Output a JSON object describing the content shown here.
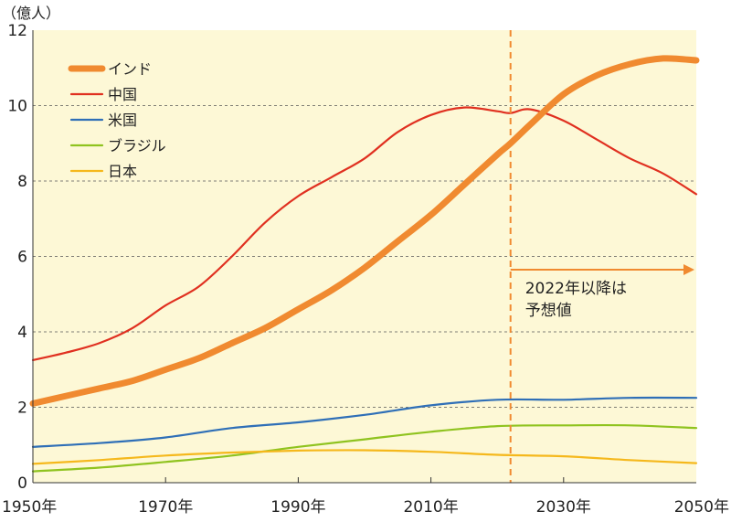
{
  "chart_data": {
    "type": "line",
    "unit_label": "（億人）",
    "x_ticks": [
      "1950年",
      "1970年",
      "1990年",
      "2010年",
      "2030年",
      "2050年"
    ],
    "x_tick_values": [
      1950,
      1970,
      1990,
      2010,
      2030,
      2050
    ],
    "y_ticks": [
      "0",
      "2",
      "4",
      "6",
      "8",
      "10",
      "12"
    ],
    "y_tick_values": [
      0,
      2,
      4,
      6,
      8,
      10,
      12
    ],
    "xlim": [
      1950,
      2050
    ],
    "ylim": [
      0,
      12
    ],
    "grid": "horizontal dashed",
    "legend_position": "top-left",
    "projection_start": 2022,
    "projection_note": [
      "2022年以降は",
      "予想値"
    ],
    "series": [
      {
        "name": "インド",
        "color": "#f08a30",
        "width": 7,
        "points": [
          [
            1950,
            2.1
          ],
          [
            1955,
            2.3
          ],
          [
            1960,
            2.5
          ],
          [
            1965,
            2.7
          ],
          [
            1970,
            3.0
          ],
          [
            1975,
            3.3
          ],
          [
            1980,
            3.7
          ],
          [
            1985,
            4.1
          ],
          [
            1990,
            4.6
          ],
          [
            1995,
            5.1
          ],
          [
            2000,
            5.7
          ],
          [
            2005,
            6.4
          ],
          [
            2010,
            7.1
          ],
          [
            2015,
            7.9
          ],
          [
            2020,
            8.7
          ],
          [
            2022,
            9.0
          ],
          [
            2025,
            9.5
          ],
          [
            2030,
            10.3
          ],
          [
            2035,
            10.8
          ],
          [
            2040,
            11.1
          ],
          [
            2045,
            11.25
          ],
          [
            2050,
            11.2
          ]
        ]
      },
      {
        "name": "中国",
        "color": "#e03020",
        "width": 2.2,
        "points": [
          [
            1950,
            3.25
          ],
          [
            1955,
            3.45
          ],
          [
            1960,
            3.7
          ],
          [
            1965,
            4.1
          ],
          [
            1970,
            4.7
          ],
          [
            1975,
            5.2
          ],
          [
            1980,
            6.0
          ],
          [
            1985,
            6.9
          ],
          [
            1990,
            7.6
          ],
          [
            1995,
            8.1
          ],
          [
            2000,
            8.6
          ],
          [
            2005,
            9.3
          ],
          [
            2010,
            9.75
          ],
          [
            2015,
            9.95
          ],
          [
            2020,
            9.85
          ],
          [
            2022,
            9.8
          ],
          [
            2025,
            9.9
          ],
          [
            2030,
            9.6
          ],
          [
            2035,
            9.1
          ],
          [
            2040,
            8.6
          ],
          [
            2045,
            8.2
          ],
          [
            2050,
            7.65
          ]
        ]
      },
      {
        "name": "米国",
        "color": "#2f6fb7",
        "width": 2.2,
        "points": [
          [
            1950,
            0.95
          ],
          [
            1960,
            1.05
          ],
          [
            1970,
            1.2
          ],
          [
            1980,
            1.45
          ],
          [
            1990,
            1.6
          ],
          [
            2000,
            1.8
          ],
          [
            2010,
            2.05
          ],
          [
            2020,
            2.2
          ],
          [
            2030,
            2.2
          ],
          [
            2040,
            2.25
          ],
          [
            2050,
            2.25
          ]
        ]
      },
      {
        "name": "ブラジル",
        "color": "#8fc31f",
        "width": 2.2,
        "points": [
          [
            1950,
            0.3
          ],
          [
            1960,
            0.4
          ],
          [
            1970,
            0.55
          ],
          [
            1980,
            0.72
          ],
          [
            1990,
            0.95
          ],
          [
            2000,
            1.15
          ],
          [
            2010,
            1.35
          ],
          [
            2020,
            1.5
          ],
          [
            2030,
            1.52
          ],
          [
            2040,
            1.52
          ],
          [
            2050,
            1.45
          ]
        ]
      },
      {
        "name": "日本",
        "color": "#f5b81c",
        "width": 2.2,
        "points": [
          [
            1950,
            0.5
          ],
          [
            1960,
            0.6
          ],
          [
            1970,
            0.72
          ],
          [
            1980,
            0.8
          ],
          [
            1990,
            0.85
          ],
          [
            2000,
            0.86
          ],
          [
            2010,
            0.82
          ],
          [
            2020,
            0.74
          ],
          [
            2030,
            0.7
          ],
          [
            2040,
            0.6
          ],
          [
            2050,
            0.52
          ]
        ]
      }
    ]
  }
}
